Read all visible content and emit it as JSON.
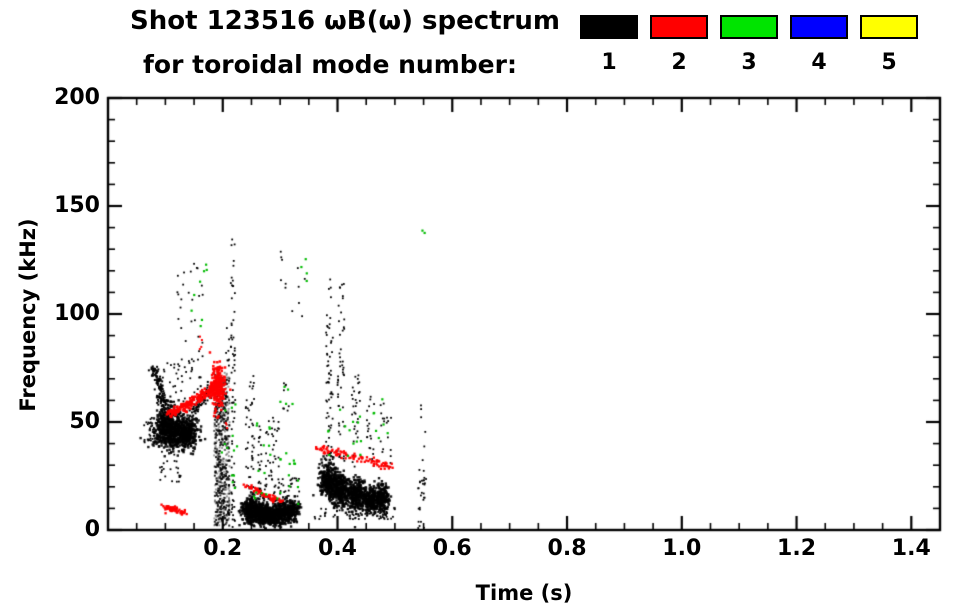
{
  "header": {
    "title": "Shot 123516 ωB(ω) spectrum",
    "subtitle": "for toroidal mode number:"
  },
  "legend": {
    "entries": [
      {
        "label": "1",
        "color": "#000000"
      },
      {
        "label": "2",
        "color": "#ff0000"
      },
      {
        "label": "3",
        "color": "#00e400"
      },
      {
        "label": "4",
        "color": "#0000ff"
      },
      {
        "label": "5",
        "color": "#ffff00"
      }
    ]
  },
  "chart_data": {
    "type": "scatter",
    "title": "Shot 123516 ωB(ω) spectrum for toroidal mode number",
    "xlabel": "Time (s)",
    "ylabel": "Frequency (kHz)",
    "xlim": [
      0,
      1.45
    ],
    "ylim": [
      0,
      200
    ],
    "x_ticks": {
      "major": [
        0.2,
        0.4,
        0.6,
        0.8,
        1.0,
        1.2,
        1.4
      ],
      "labels": [
        "0.2",
        "0.4",
        "0.6",
        "0.8",
        "1.0",
        "1.2",
        "1.4"
      ],
      "minor_step": 0.05
    },
    "y_ticks": {
      "major": [
        0,
        50,
        100,
        150,
        200
      ],
      "labels": [
        "0",
        "50",
        "100",
        "150",
        "200"
      ],
      "minor_step": 10
    },
    "grid": false,
    "legend_position": "top-right",
    "series": [
      {
        "name": "1",
        "mode": 1,
        "color": "#000000",
        "clusters": [
          {
            "kind": "streak",
            "t0": 0.078,
            "f0": 76,
            "t1": 0.096,
            "f1": 63,
            "jt": 0.003,
            "jf": 1.5,
            "n": 70,
            "s": 2
          },
          {
            "kind": "streak",
            "t0": 0.09,
            "f0": 62,
            "t1": 0.106,
            "f1": 57,
            "jt": 0.004,
            "jf": 2,
            "n": 60,
            "s": 2
          },
          {
            "kind": "gauss",
            "t": 0.103,
            "f": 47,
            "st": 0.011,
            "sf": 4.5,
            "n": 520,
            "s": 2.4,
            "a": 0.9
          },
          {
            "kind": "gauss",
            "t": 0.133,
            "f": 45,
            "st": 0.012,
            "sf": 4,
            "n": 460,
            "s": 2.4,
            "a": 0.9
          },
          {
            "kind": "rect",
            "t0": 0.085,
            "t1": 0.165,
            "f0": 54,
            "f1": 80,
            "n": 50,
            "s": 1.8
          },
          {
            "kind": "rect",
            "t0": 0.12,
            "t1": 0.165,
            "f0": 80,
            "f1": 125,
            "n": 25,
            "s": 1.8
          },
          {
            "kind": "rect",
            "t0": 0.09,
            "t1": 0.13,
            "f0": 22,
            "f1": 38,
            "n": 25,
            "s": 1.8
          },
          {
            "kind": "rect",
            "t0": 0.063,
            "t1": 0.082,
            "f0": 40,
            "f1": 52,
            "n": 30,
            "s": 1.8
          },
          {
            "kind": "streak",
            "t0": 0.148,
            "f0": 56,
            "t1": 0.185,
            "f1": 67,
            "jt": 0.003,
            "jf": 2,
            "n": 90,
            "s": 2
          },
          {
            "kind": "rect",
            "t0": 0.185,
            "t1": 0.212,
            "f0": 2,
            "f1": 73,
            "n": 280,
            "s": 2,
            "a": 0.4
          },
          {
            "kind": "rect",
            "t0": 0.186,
            "t1": 0.212,
            "f0": 2,
            "f1": 73,
            "n": 300,
            "s": 2,
            "a": 0.85
          },
          {
            "kind": "rect",
            "t0": 0.205,
            "t1": 0.212,
            "f0": 73,
            "f1": 100,
            "n": 8,
            "s": 1.8
          },
          {
            "kind": "rect",
            "t0": 0.214,
            "t1": 0.222,
            "f0": 0,
            "f1": 135,
            "n": 70,
            "s": 1.8
          },
          {
            "kind": "gauss",
            "t": 0.248,
            "f": 9,
            "st": 0.008,
            "sf": 3,
            "n": 300,
            "s": 2.4,
            "a": 0.9
          },
          {
            "kind": "gauss",
            "t": 0.268,
            "f": 8,
            "st": 0.007,
            "sf": 2.5,
            "n": 250,
            "s": 2.4,
            "a": 0.9
          },
          {
            "kind": "gauss",
            "t": 0.285,
            "f": 7,
            "st": 0.007,
            "sf": 2.5,
            "n": 250,
            "s": 2.4,
            "a": 0.9
          },
          {
            "kind": "gauss",
            "t": 0.305,
            "f": 8,
            "st": 0.008,
            "sf": 3,
            "n": 250,
            "s": 2.4,
            "a": 0.9
          },
          {
            "kind": "gauss",
            "t": 0.322,
            "f": 9,
            "st": 0.006,
            "sf": 2.5,
            "n": 150,
            "s": 2.4,
            "a": 0.9
          },
          {
            "kind": "rect",
            "t0": 0.24,
            "t1": 0.255,
            "f0": 14,
            "f1": 72,
            "n": 45,
            "s": 1.8
          },
          {
            "kind": "rect",
            "t0": 0.262,
            "t1": 0.268,
            "f0": 14,
            "f1": 48,
            "n": 25,
            "s": 1.8
          },
          {
            "kind": "rect",
            "t0": 0.275,
            "t1": 0.3,
            "f0": 25,
            "f1": 52,
            "n": 30,
            "s": 1.8
          },
          {
            "kind": "rect",
            "t0": 0.3,
            "t1": 0.345,
            "f0": 95,
            "f1": 132,
            "n": 12,
            "s": 1.8
          },
          {
            "kind": "rect",
            "t0": 0.27,
            "t1": 0.335,
            "f0": 14,
            "f1": 24,
            "n": 40,
            "s": 1.8
          },
          {
            "kind": "rect",
            "t0": 0.305,
            "t1": 0.315,
            "f0": 55,
            "f1": 70,
            "n": 8,
            "s": 1.8
          },
          {
            "kind": "gauss",
            "t": 0.383,
            "f": 23,
            "st": 0.007,
            "sf": 4,
            "n": 300,
            "s": 2.4,
            "a": 0.9
          },
          {
            "kind": "gauss",
            "t": 0.405,
            "f": 19,
            "st": 0.008,
            "sf": 4,
            "n": 350,
            "s": 2.4,
            "a": 0.9
          },
          {
            "kind": "gauss",
            "t": 0.432,
            "f": 16,
            "st": 0.008,
            "sf": 3.5,
            "n": 300,
            "s": 2.4,
            "a": 0.9
          },
          {
            "kind": "gauss",
            "t": 0.458,
            "f": 14,
            "st": 0.007,
            "sf": 3,
            "n": 250,
            "s": 2.4,
            "a": 0.9
          },
          {
            "kind": "gauss",
            "t": 0.478,
            "f": 15,
            "st": 0.006,
            "sf": 3,
            "n": 200,
            "s": 2.4,
            "a": 0.9
          },
          {
            "kind": "rect",
            "t0": 0.36,
            "t1": 0.5,
            "f0": 5,
            "f1": 10,
            "n": 60,
            "s": 1.8
          },
          {
            "kind": "rect",
            "t0": 0.38,
            "t1": 0.392,
            "f0": 30,
            "f1": 122,
            "n": 60,
            "s": 1.8
          },
          {
            "kind": "rect",
            "t0": 0.4,
            "t1": 0.412,
            "f0": 30,
            "f1": 115,
            "n": 50,
            "s": 1.8
          },
          {
            "kind": "rect",
            "t0": 0.425,
            "t1": 0.44,
            "f0": 28,
            "f1": 72,
            "n": 30,
            "s": 1.8
          },
          {
            "kind": "rect",
            "t0": 0.45,
            "t1": 0.465,
            "f0": 28,
            "f1": 66,
            "n": 20,
            "s": 1.8
          },
          {
            "kind": "rect",
            "t0": 0.475,
            "t1": 0.495,
            "f0": 28,
            "f1": 60,
            "n": 20,
            "s": 1.8
          },
          {
            "kind": "rect",
            "t0": 0.54,
            "t1": 0.555,
            "f0": 0,
            "f1": 28,
            "n": 30,
            "s": 1.8
          },
          {
            "kind": "rect",
            "t0": 0.545,
            "t1": 0.553,
            "f0": 28,
            "f1": 60,
            "n": 6,
            "s": 1.8
          }
        ]
      },
      {
        "name": "2",
        "mode": 2,
        "color": "#ff0000",
        "clusters": [
          {
            "kind": "streak",
            "t0": 0.105,
            "f0": 53,
            "t1": 0.188,
            "f1": 66,
            "jt": 0.002,
            "jf": 1.2,
            "n": 170,
            "s": 2.5
          },
          {
            "kind": "gauss",
            "t": 0.192,
            "f": 66,
            "st": 0.006,
            "sf": 5,
            "n": 230,
            "s": 2.5,
            "a": 0.95
          },
          {
            "kind": "streak",
            "t0": 0.094,
            "f0": 10.5,
            "t1": 0.134,
            "f1": 8.5,
            "jt": 0.002,
            "jf": 0.8,
            "n": 60,
            "s": 2.3
          },
          {
            "kind": "streak",
            "t0": 0.236,
            "f0": 21,
            "t1": 0.304,
            "f1": 12.5,
            "jt": 0.002,
            "jf": 0.8,
            "n": 70,
            "s": 2.3
          },
          {
            "kind": "streak",
            "t0": 0.365,
            "f0": 38,
            "t1": 0.498,
            "f1": 29,
            "jt": 0.002,
            "jf": 0.9,
            "n": 95,
            "s": 2.3
          },
          {
            "kind": "rect",
            "t0": 0.155,
            "t1": 0.17,
            "f0": 83,
            "f1": 90,
            "n": 4,
            "s": 2
          },
          {
            "kind": "rect",
            "t0": 0.205,
            "t1": 0.215,
            "f0": 42,
            "f1": 50,
            "n": 3,
            "s": 2
          }
        ]
      },
      {
        "name": "3",
        "mode": 3,
        "color": "#00bb00",
        "clusters": [
          {
            "kind": "rect",
            "t0": 0.135,
            "t1": 0.178,
            "f0": 93,
            "f1": 126,
            "n": 8,
            "s": 2.2
          },
          {
            "kind": "rect",
            "t0": 0.198,
            "t1": 0.225,
            "f0": 30,
            "f1": 62,
            "n": 9,
            "s": 2.2
          },
          {
            "kind": "rect",
            "t0": 0.215,
            "t1": 0.23,
            "f0": 18,
            "f1": 28,
            "n": 4,
            "s": 2.2
          },
          {
            "kind": "rect",
            "t0": 0.252,
            "t1": 0.338,
            "f0": 12,
            "f1": 36,
            "n": 22,
            "s": 2.2
          },
          {
            "kind": "rect",
            "t0": 0.258,
            "t1": 0.282,
            "f0": 38,
            "f1": 52,
            "n": 6,
            "s": 2.2
          },
          {
            "kind": "rect",
            "t0": 0.298,
            "t1": 0.322,
            "f0": 54,
            "f1": 68,
            "n": 5,
            "s": 2.2
          },
          {
            "kind": "rect",
            "t0": 0.333,
            "t1": 0.347,
            "f0": 112,
            "f1": 126,
            "n": 4,
            "s": 2.2
          },
          {
            "kind": "rect",
            "t0": 0.368,
            "t1": 0.442,
            "f0": 33,
            "f1": 56,
            "n": 14,
            "s": 2.2
          },
          {
            "kind": "rect",
            "t0": 0.458,
            "t1": 0.492,
            "f0": 42,
            "f1": 62,
            "n": 7,
            "s": 2.2
          },
          {
            "kind": "rect",
            "t0": 0.548,
            "t1": 0.556,
            "f0": 136,
            "f1": 142,
            "n": 2,
            "s": 2.2
          }
        ]
      },
      {
        "name": "4",
        "mode": 4,
        "color": "#0000ff",
        "clusters": []
      },
      {
        "name": "5",
        "mode": 5,
        "color": "#ffff00",
        "clusters": []
      }
    ]
  }
}
